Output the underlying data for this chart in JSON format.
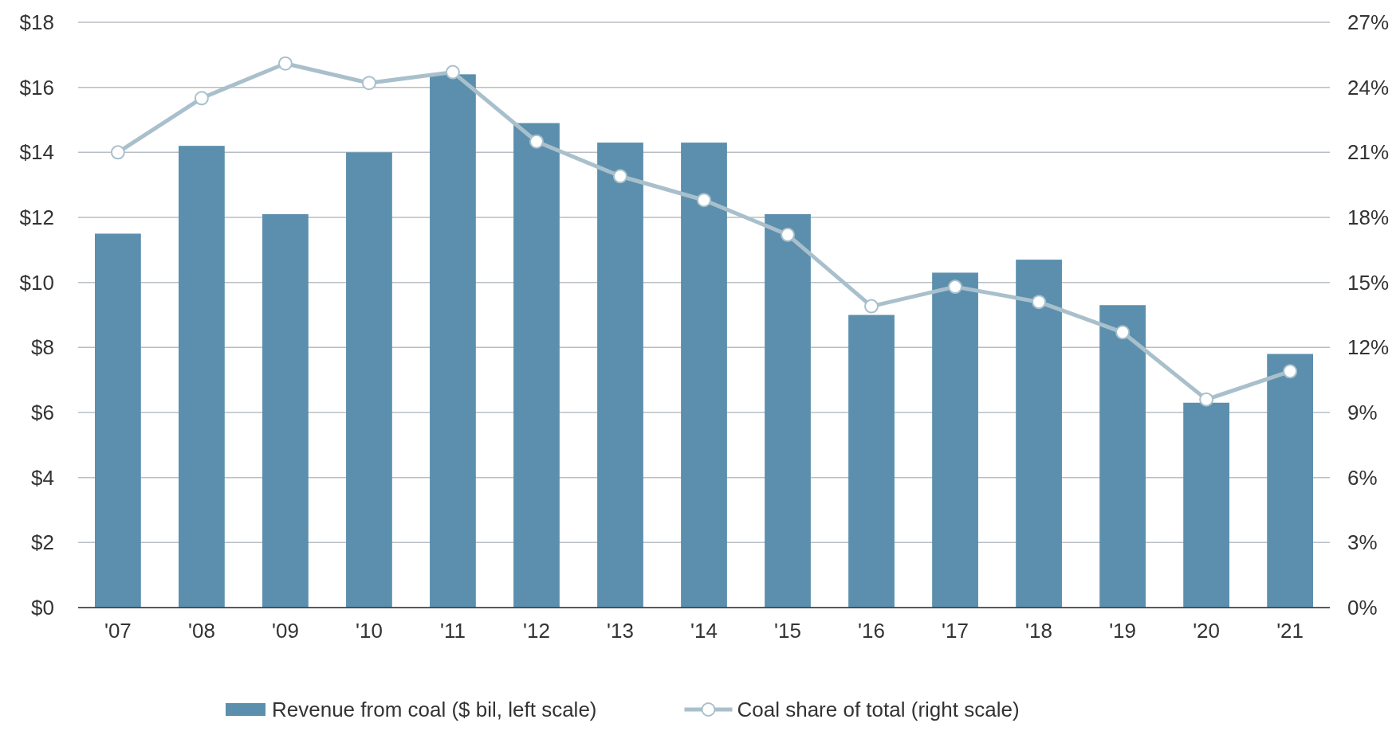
{
  "chart_data": {
    "type": "bar",
    "categories": [
      "'07",
      "'08",
      "'09",
      "'10",
      "'11",
      "'12",
      "'13",
      "'14",
      "'15",
      "'16",
      "'17",
      "'18",
      "'19",
      "'20",
      "'21"
    ],
    "series": [
      {
        "name": "Revenue from coal ($ bil, left scale)",
        "color": "#5b8fad",
        "values": [
          11.5,
          14.2,
          12.1,
          14.0,
          16.4,
          14.9,
          14.3,
          14.3,
          12.1,
          9.0,
          10.3,
          10.7,
          9.3,
          6.3,
          7.8
        ]
      },
      {
        "name": "Coal share of total (right scale)",
        "type": "line",
        "axis": "y2",
        "color": "#a9c0cc",
        "marker": "circle",
        "values": [
          21.0,
          23.5,
          25.1,
          24.2,
          24.7,
          21.5,
          19.9,
          18.8,
          17.2,
          13.9,
          14.8,
          14.1,
          12.7,
          9.6,
          10.9
        ]
      }
    ],
    "ylim": [
      0,
      18
    ],
    "yticks": [
      {
        "value": 0,
        "label": "$0"
      },
      {
        "value": 2,
        "label": "$2"
      },
      {
        "value": 4,
        "label": "$4"
      },
      {
        "value": 6,
        "label": "$6"
      },
      {
        "value": 8,
        "label": "$8"
      },
      {
        "value": 10,
        "label": "$10"
      },
      {
        "value": 12,
        "label": "$12"
      },
      {
        "value": 14,
        "label": "$14"
      },
      {
        "value": 16,
        "label": "$16"
      },
      {
        "value": 18,
        "label": "$18"
      }
    ],
    "y2lim": [
      0,
      27
    ],
    "y2ticks": [
      {
        "value": 0,
        "label": "0%"
      },
      {
        "value": 3,
        "label": "3%"
      },
      {
        "value": 6,
        "label": "6%"
      },
      {
        "value": 9,
        "label": "9%"
      },
      {
        "value": 12,
        "label": "12%"
      },
      {
        "value": 15,
        "label": "15%"
      },
      {
        "value": 18,
        "label": "18%"
      },
      {
        "value": 21,
        "label": "21%"
      },
      {
        "value": 24,
        "label": "24%"
      },
      {
        "value": 27,
        "label": "27%"
      }
    ],
    "grid": "y",
    "legend": "bottom"
  }
}
